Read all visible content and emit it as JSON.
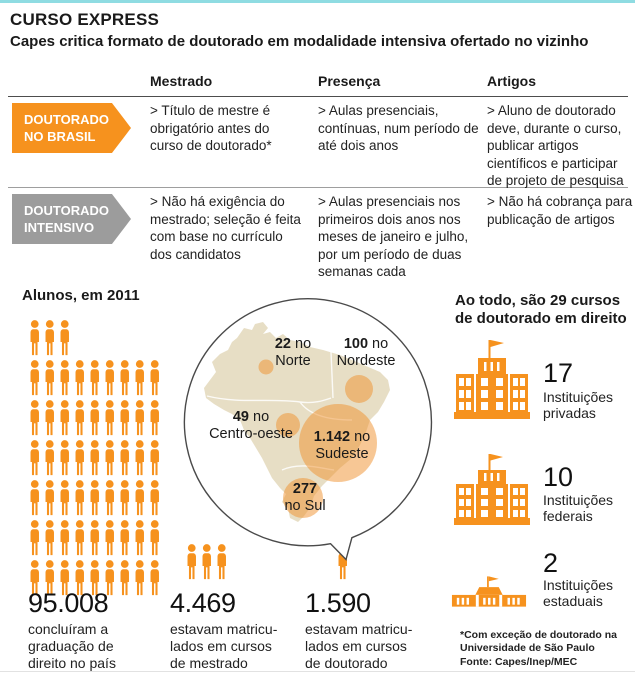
{
  "header": {
    "title": "CURSO EXPRESS",
    "subtitle": "Capes critica formato de doutorado em modalidade intensiva ofertado no vizinho"
  },
  "table": {
    "columns": [
      "Mestrado",
      "Presença",
      "Artigos"
    ],
    "rows": [
      {
        "label_line1": "DOUTORADO",
        "label_line2": "NO BRASIL",
        "color": "#F6921E",
        "cells": [
          "> Título de mestre é obrigatório antes do curso de doutorado*",
          "> Aulas presenciais, contínuas, num período de até dois anos",
          "> Aluno de doutorado deve, durante o curso, publicar artigos científicos e participar de projeto de pesquisa"
        ]
      },
      {
        "label_line1": "DOUTORADO",
        "label_line2": "INTENSIVO",
        "color": "#9C9C9C",
        "cells": [
          "> Não há exigência do mestrado; seleção é feita com base no currículo dos candidatos",
          "> Aulas presenciais nos primeiros dois anos nos meses de janeiro e julho, por um período de duas semanas cada",
          "> Não há cobrança para publicação de artigos"
        ]
      }
    ]
  },
  "students": {
    "heading": "Alunos, em 2011",
    "groups": [
      {
        "value": "95.008",
        "caption_lines": [
          "concluíram a",
          "graduação de",
          "direito no país"
        ],
        "icon_rows": [
          3,
          9,
          9,
          9,
          9,
          9,
          9
        ]
      },
      {
        "value": "4.469",
        "caption_lines": [
          "estavam matricu-",
          "lados em cursos",
          "de mestrado"
        ],
        "icon_rows": [
          3
        ]
      },
      {
        "value": "1.590",
        "caption_lines": [
          "estavam matricu-",
          "lados em cursos",
          "de doutorado"
        ],
        "icon_rows": [
          1
        ]
      }
    ]
  },
  "map": {
    "regions": [
      {
        "id": "norte",
        "value": "22",
        "connector": " no",
        "name": "Norte"
      },
      {
        "id": "nordeste",
        "value": "100",
        "connector": " no",
        "name": "Nordeste"
      },
      {
        "id": "centro-oeste",
        "value": "49",
        "connector": " no",
        "name": "Centro-oeste"
      },
      {
        "id": "sudeste",
        "value": "1.142",
        "connector": " no",
        "name": "Sudeste"
      },
      {
        "id": "sul",
        "value": "277",
        "connector": "",
        "name": "no Sul"
      }
    ]
  },
  "institutions": {
    "heading_line1": "Ao todo, são 29 cursos",
    "heading_line2": "de doutorado em direito",
    "items": [
      {
        "value": "17",
        "label_line1": "Instituições",
        "label_line2": "privadas"
      },
      {
        "value": "10",
        "label_line1": "Instituições",
        "label_line2": "federais"
      },
      {
        "value": "2",
        "label_line1": "Instituições",
        "label_line2": "estaduais"
      }
    ]
  },
  "footnote": {
    "line1": "*Com exceção de doutorado na",
    "line2": "Universidade de São Paulo",
    "source": "Fonte: Capes/Inep/MEC"
  },
  "colors": {
    "accent_orange": "#F6921E",
    "gray_label": "#9C9C9C",
    "map_land": "#E7DEC5",
    "bubble_circle": "rgba(240,144,44,0.5)",
    "top_border": "#8FDCE2"
  },
  "chart_data": [
    {
      "type": "pictograph",
      "title": "Alunos, em 2011",
      "categories": [
        "concluíram a graduação de direito no país",
        "estavam matriculados em cursos de mestrado",
        "estavam matriculados em cursos de doutorado"
      ],
      "values": [
        95008,
        4469,
        1590
      ]
    },
    {
      "type": "bubble-map",
      "title": "Matriculados em doutorado por região (Brasil)",
      "categories": [
        "Norte",
        "Nordeste",
        "Centro-oeste",
        "Sudeste",
        "Sul"
      ],
      "values": [
        22,
        100,
        49,
        1142,
        277
      ]
    },
    {
      "type": "pictograph",
      "title": "Ao todo, são 29 cursos de doutorado em direito",
      "categories": [
        "Instituições privadas",
        "Instituições federais",
        "Instituições estaduais"
      ],
      "values": [
        17,
        10,
        2
      ]
    }
  ]
}
